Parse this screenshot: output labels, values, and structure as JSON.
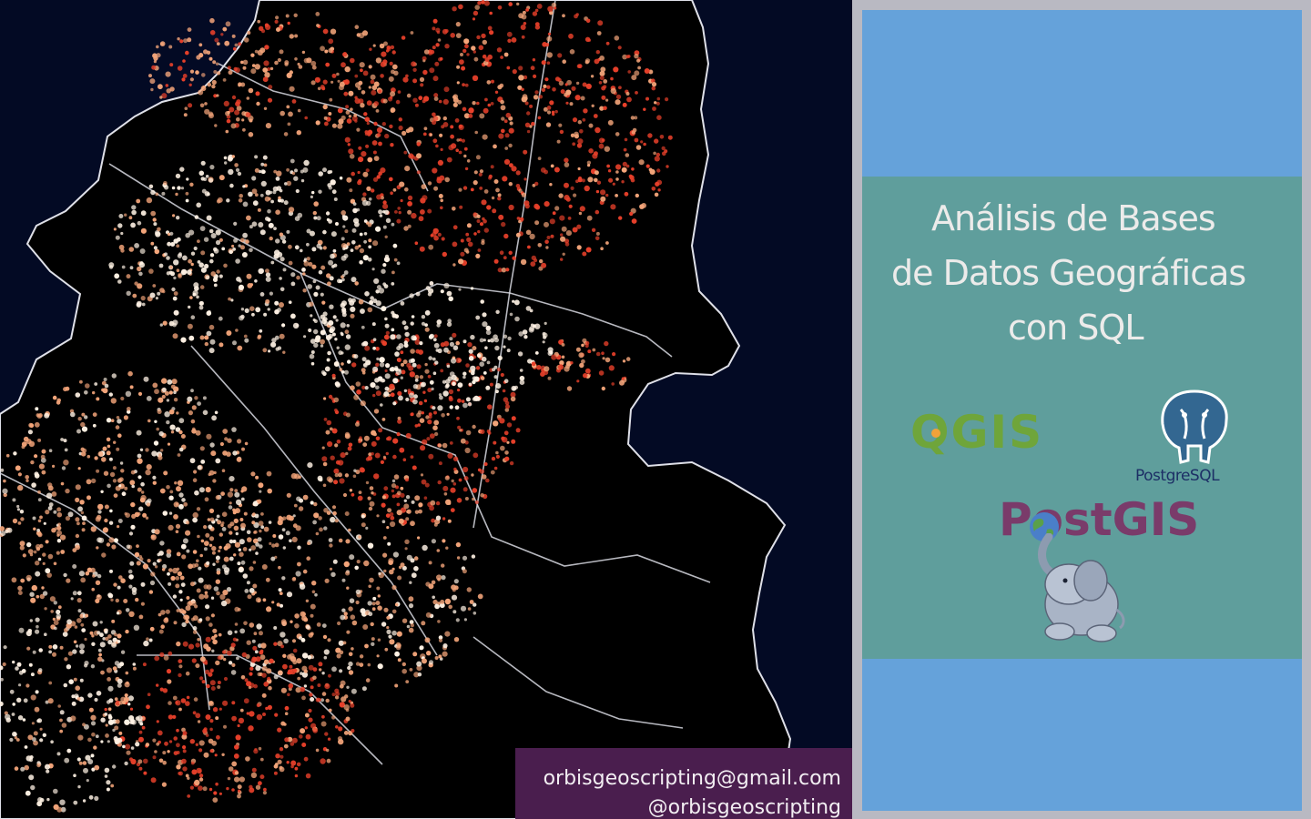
{
  "title": {
    "line1": "Análisis de Bases",
    "line2": "de Datos Geográficas",
    "line3": "con SQL"
  },
  "logos": {
    "qgis": "QGIS",
    "postgresql": "PostgreSQL",
    "postgis": "PostGIS"
  },
  "contact": {
    "email": "orbisgeoscripting@gmail.com",
    "handle": "@orbisgeoscripting"
  },
  "colors": {
    "map_background": "#030a24",
    "land": "#000000",
    "boundary": "#e8e8ee",
    "point_hot": "#e8402a",
    "point_mid": "#f4a57a",
    "point_cold": "#fff2e4",
    "panel_blue": "#65a2da",
    "panel_teal": "#5f9e9c",
    "contact_bg": "#4a1e4e"
  },
  "icons": [
    "qgis-logo",
    "postgresql-elephant-icon",
    "postgis-globe-icon",
    "postgis-elephant-icon"
  ]
}
